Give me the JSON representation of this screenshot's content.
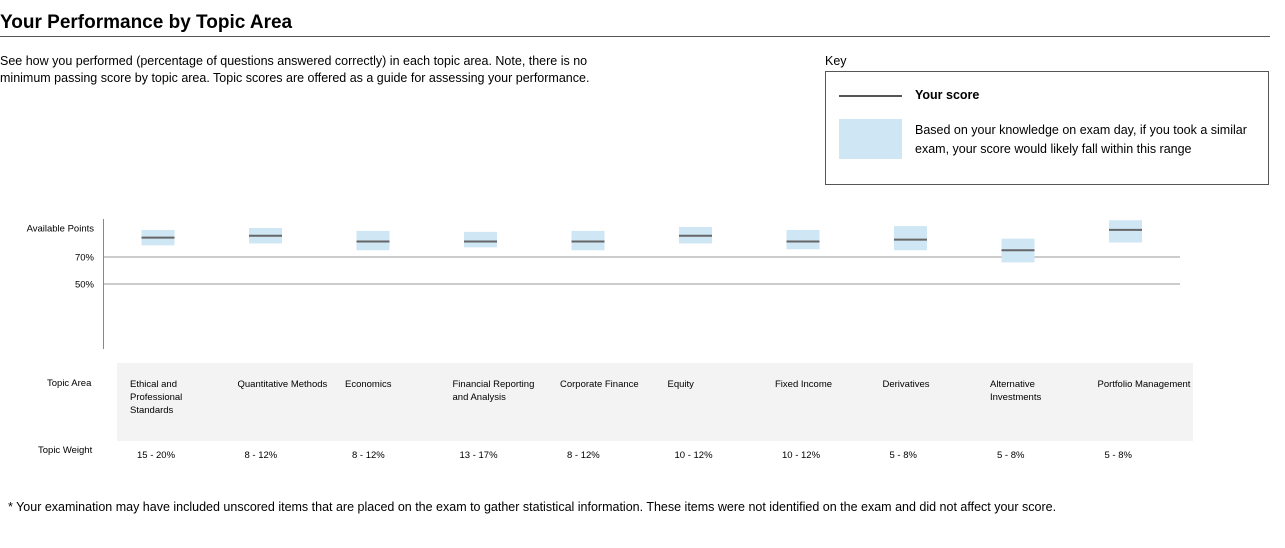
{
  "header": {
    "title": "Your Performance by Topic Area",
    "intro": "See how you performed (percentage of questions answered correctly) in each topic area. Note, there is no minimum passing score by topic area. Topic scores are offered as a guide for assessing your performance."
  },
  "key": {
    "label": "Key",
    "score_label": "Your score",
    "range_label": "Based on your knowledge on exam day, if you took a similar exam, your score would likely fall within this range"
  },
  "colors": {
    "range_fill": "#cfe6f4",
    "score_line": "#666666",
    "grid": "#9a9a9a",
    "band": "#f3f3f3"
  },
  "row_labels": {
    "topic_area": "Topic Area",
    "topic_weight": "Topic Weight"
  },
  "footnote": "* Your examination may have included unscored items that are placed on the exam to gather statistical information. These items were not identified on the exam and did not affect your score.",
  "chart_data": {
    "type": "range",
    "y_tick_labels": [
      "Available Points",
      "70%",
      "50%"
    ],
    "y_tick_values": [
      100,
      70,
      50
    ],
    "ylim": [
      0,
      100
    ],
    "categories": [
      "Ethical and Professional Standards",
      "Quantitative Methods",
      "Economics",
      "Financial Reporting and Analysis",
      "Corporate Finance",
      "Equity",
      "Fixed Income",
      "Derivatives",
      "Alternative Investments",
      "Portfolio Management"
    ],
    "topic_weights": [
      "15 - 20%",
      "8 - 12%",
      "8 - 12%",
      "13 - 17%",
      "8 - 12%",
      "10 - 12%",
      "10 - 12%",
      "5 - 8%",
      "5 - 8%",
      "5 - 8%"
    ],
    "scores": [
      90,
      92,
      86,
      86,
      86,
      92,
      86,
      88,
      77,
      98
    ],
    "ranges": [
      [
        82,
        98
      ],
      [
        84,
        100
      ],
      [
        77,
        97
      ],
      [
        80,
        96
      ],
      [
        77,
        97
      ],
      [
        84,
        101
      ],
      [
        78,
        98
      ],
      [
        77,
        102
      ],
      [
        66,
        89
      ],
      [
        85,
        108
      ]
    ]
  }
}
